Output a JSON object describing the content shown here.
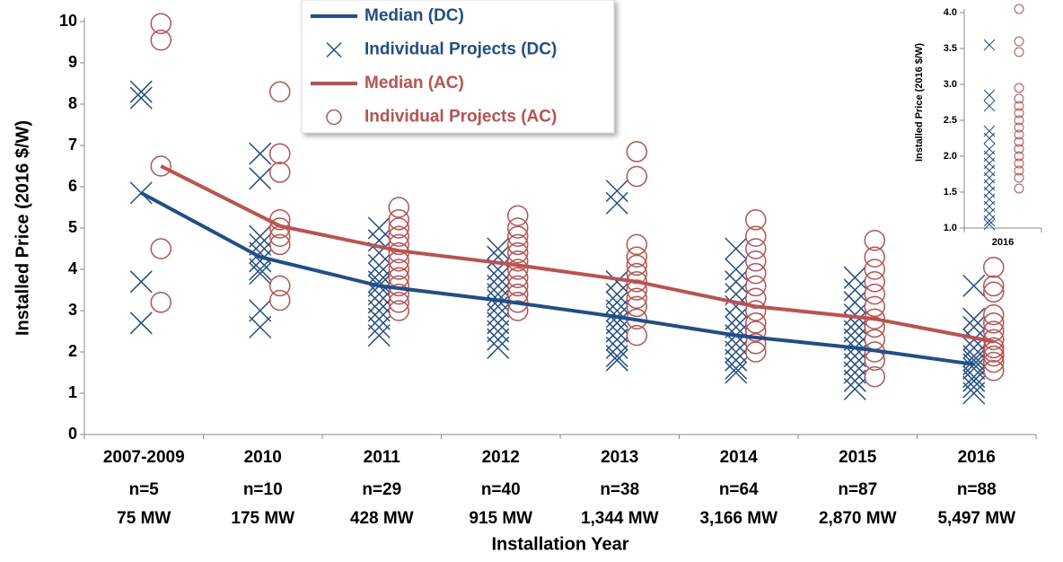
{
  "chart_data": [
    {
      "type": "line-scatter",
      "x_label": "Installation Year",
      "y_label": "Installed Price (2016 $/W)",
      "categories": [
        "2007-2009",
        "2010",
        "2011",
        "2012",
        "2013",
        "2014",
        "2015",
        "2016"
      ],
      "sample_sizes": [
        "n=5",
        "n=10",
        "n=29",
        "n=40",
        "n=38",
        "n=64",
        "n=87",
        "n=88"
      ],
      "capacities": [
        "75 MW",
        "175 MW",
        "428 MW",
        "915 MW",
        "1,344 MW",
        "3,166 MW",
        "2,870 MW",
        "5,497 MW"
      ],
      "ylim": [
        0,
        10
      ],
      "yticks": [
        0,
        1,
        2,
        3,
        4,
        5,
        6,
        7,
        8,
        9,
        10
      ],
      "series": [
        {
          "name": "Median (DC)",
          "kind": "line",
          "color": "#1f4e8c",
          "values": [
            5.85,
            4.3,
            3.6,
            3.25,
            2.85,
            2.4,
            2.1,
            1.7
          ]
        },
        {
          "name": "Individual Projects (DC)",
          "kind": "x",
          "color": "#1f4e8c",
          "values": [
            [
              8.3,
              8.15,
              5.85,
              3.7,
              2.7
            ],
            [
              6.8,
              6.2,
              4.8,
              4.6,
              4.4,
              4.2,
              4.0,
              3.9,
              3.0,
              2.6
            ],
            [
              5.0,
              4.7,
              4.4,
              4.1,
              3.9,
              3.7,
              3.6,
              3.4,
              3.2,
              3.0,
              2.8,
              2.6,
              2.4
            ],
            [
              4.5,
              4.3,
              4.0,
              3.8,
              3.6,
              3.4,
              3.25,
              3.1,
              2.9,
              2.7,
              2.5,
              2.3,
              2.1
            ],
            [
              5.9,
              5.6,
              3.7,
              3.4,
              3.2,
              3.0,
              2.85,
              2.7,
              2.5,
              2.3,
              2.1,
              1.9,
              1.8
            ],
            [
              4.5,
              4.0,
              3.7,
              3.4,
              3.1,
              2.8,
              2.6,
              2.4,
              2.2,
              2.0,
              1.8,
              1.6,
              1.5
            ],
            [
              3.8,
              3.5,
              3.2,
              2.9,
              2.7,
              2.5,
              2.3,
              2.1,
              1.9,
              1.7,
              1.5,
              1.3,
              1.1
            ],
            [
              3.6,
              2.8,
              2.6,
              2.3,
              2.1,
              1.9,
              1.8,
              1.7,
              1.6,
              1.4,
              1.3,
              1.15,
              1.0
            ]
          ]
        },
        {
          "name": "Median (AC)",
          "kind": "line",
          "color": "#c0504d",
          "values": [
            6.5,
            5.05,
            4.45,
            4.1,
            3.7,
            3.1,
            2.8,
            2.25
          ]
        },
        {
          "name": "Individual Projects (AC)",
          "kind": "o",
          "color": "#c0504d",
          "values": [
            [
              9.95,
              9.55,
              6.5,
              4.5,
              3.2
            ],
            [
              8.3,
              6.8,
              6.35,
              5.2,
              5.0,
              4.8,
              4.6,
              3.6,
              3.25
            ],
            [
              5.5,
              5.2,
              5.0,
              4.8,
              4.6,
              4.4,
              4.2,
              4.0,
              3.8,
              3.6,
              3.4,
              3.2,
              3.0
            ],
            [
              5.3,
              5.0,
              4.8,
              4.6,
              4.4,
              4.2,
              4.0,
              3.8,
              3.6,
              3.4,
              3.2,
              3.0
            ],
            [
              6.85,
              6.25,
              4.6,
              4.3,
              4.1,
              3.9,
              3.7,
              3.5,
              3.3,
              3.1,
              2.8,
              2.4
            ],
            [
              5.2,
              4.8,
              4.5,
              4.2,
              3.9,
              3.6,
              3.3,
              3.0,
              2.7,
              2.5,
              2.2,
              2.0
            ],
            [
              4.7,
              4.3,
              4.0,
              3.7,
              3.4,
              3.1,
              2.8,
              2.6,
              2.3,
              2.0,
              1.8,
              1.4
            ],
            [
              4.05,
              3.6,
              3.45,
              2.9,
              2.7,
              2.5,
              2.3,
              2.1,
              2.0,
              1.9,
              1.75,
              1.55
            ]
          ]
        }
      ]
    },
    {
      "type": "scatter",
      "y_label": "Installed Price (2016 $/W)",
      "categories": [
        "2016"
      ],
      "ylim": [
        1,
        4
      ],
      "yticks": [
        {
          "value": 1,
          "label": "1.0"
        },
        1.5,
        {
          "value": 2,
          "label": "2.0"
        },
        2.5,
        {
          "value": 3,
          "label": "3.0"
        },
        3.5,
        {
          "value": 4,
          "label": "4.0"
        }
      ],
      "series": [
        {
          "kind": "x",
          "color": "#1f4e8c",
          "values": [
            [
              3.55,
              2.85,
              2.7,
              2.35,
              2.25,
              2.1,
              2.0,
              1.9,
              1.8,
              1.7,
              1.6,
              1.5,
              1.4,
              1.3,
              1.2,
              1.1,
              1.05
            ]
          ]
        },
        {
          "kind": "o",
          "color": "#c0504d",
          "values": [
            [
              4.05,
              3.6,
              3.45,
              2.95,
              2.8,
              2.7,
              2.6,
              2.5,
              2.4,
              2.3,
              2.2,
              2.1,
              2.0,
              1.9,
              1.8,
              1.7,
              1.55
            ]
          ]
        }
      ]
    }
  ]
}
